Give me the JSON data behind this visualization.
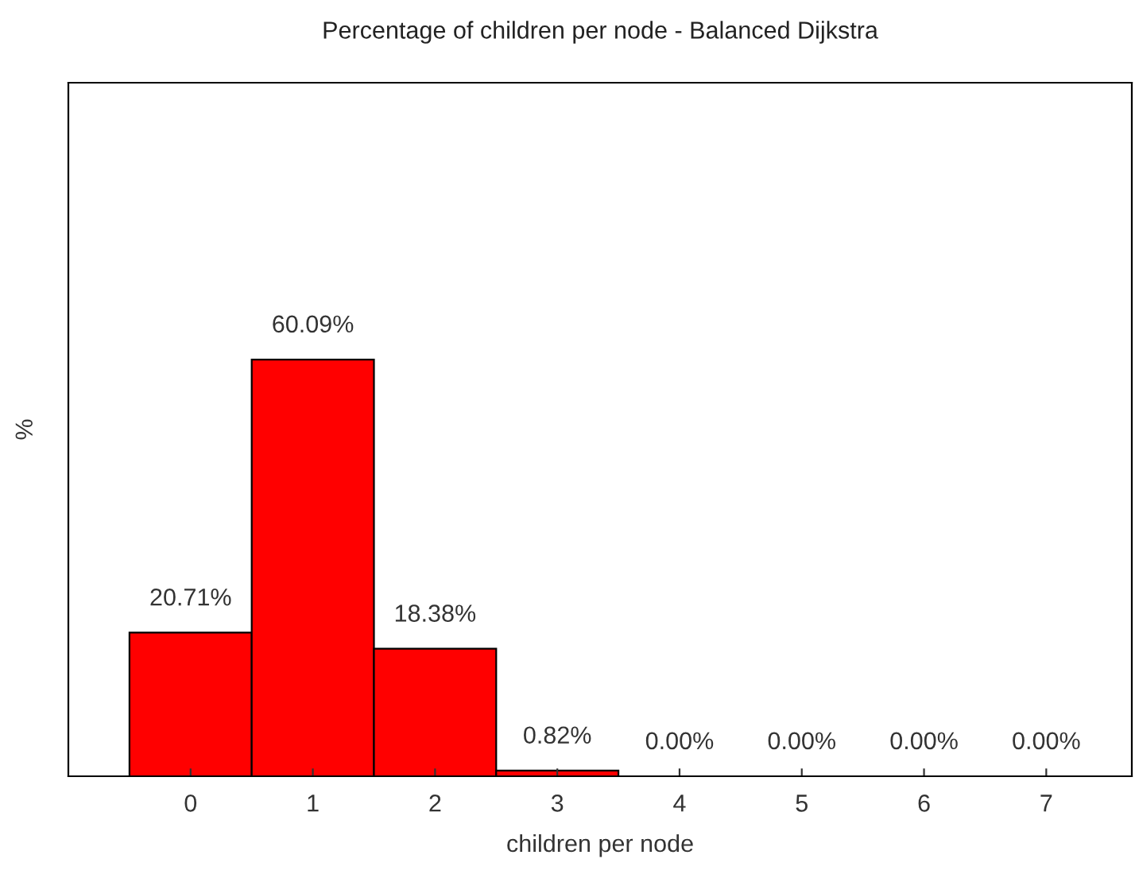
{
  "chart_data": {
    "type": "bar",
    "title": "Percentage of children per node - Balanced Dijkstra",
    "xlabel": "children per node",
    "ylabel": "%",
    "categories": [
      "0",
      "1",
      "2",
      "3",
      "4",
      "5",
      "6",
      "7"
    ],
    "values": [
      20.71,
      60.09,
      18.38,
      0.82,
      0.0,
      0.0,
      0.0,
      0.0
    ],
    "value_labels": [
      "20.71%",
      "60.09%",
      "18.38%",
      "0.82%",
      "0.00%",
      "0.00%",
      "0.00%",
      "0.00%"
    ],
    "color": "#ff0000",
    "ylim": [
      0,
      100
    ],
    "tick_labels": "x",
    "grid": false,
    "legend": false
  }
}
